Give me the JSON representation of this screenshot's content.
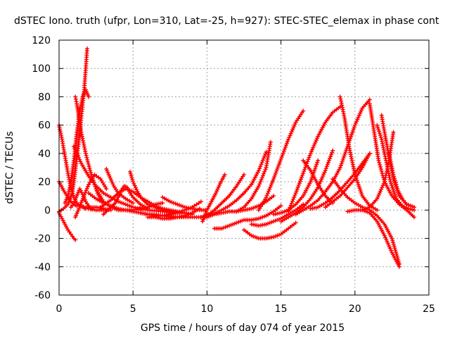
{
  "chart_data": {
    "type": "scatter",
    "title": "dSTEC Iono. truth (ufpr, Lon=310, Lat=-25, h=927): STEC-STEC_elemax in phase cont",
    "xlabel": "GPS time / hours of day 074 of year 2015",
    "ylabel": "dSTEC  / TECUs",
    "xlim": [
      0,
      25
    ],
    "ylim": [
      -60,
      120
    ],
    "xticks": [
      0,
      5,
      10,
      15,
      20,
      25
    ],
    "yticks": [
      -60,
      -40,
      -20,
      0,
      20,
      40,
      60,
      80,
      100,
      120
    ],
    "grid": true,
    "marker": "plus",
    "series_color": "#ff0000",
    "series": [
      {
        "x": [
          0.0,
          0.2,
          0.4,
          0.6,
          0.8,
          1.0,
          1.1
        ],
        "y": [
          -2,
          -6,
          -10,
          -14,
          -17,
          -20,
          -21
        ]
      },
      {
        "x": [
          0.0,
          0.2,
          0.4,
          0.6,
          0.8,
          1.0,
          1.2,
          1.4,
          1.6,
          1.8,
          2.0,
          2.5,
          3.0
        ],
        "y": [
          60,
          50,
          38,
          26,
          16,
          9,
          5,
          3,
          2,
          1,
          1,
          0,
          0
        ]
      },
      {
        "x": [
          0.0,
          0.3,
          0.6,
          0.9,
          1.1,
          1.3,
          1.5,
          1.7,
          1.9
        ],
        "y": [
          -1,
          1,
          4,
          12,
          28,
          45,
          65,
          85,
          114
        ]
      },
      {
        "x": [
          0.0,
          0.3,
          0.6,
          0.8,
          1.0,
          1.2,
          1.5,
          1.8,
          2.1,
          2.5,
          3.0,
          3.5
        ],
        "y": [
          20,
          14,
          9,
          6,
          4,
          3,
          3,
          2,
          2,
          2,
          1,
          0
        ]
      },
      {
        "x": [
          0.4,
          0.6,
          0.8,
          1.0,
          1.2,
          1.4,
          1.6,
          1.8,
          2.0
        ],
        "y": [
          5,
          10,
          20,
          35,
          55,
          70,
          80,
          85,
          80
        ]
      },
      {
        "x": [
          1.1,
          1.2,
          1.5,
          1.8,
          2.1,
          2.4,
          2.6,
          2.8
        ],
        "y": [
          80,
          75,
          55,
          40,
          28,
          18,
          12,
          8
        ]
      },
      {
        "x": [
          1.0,
          1.5,
          2.0,
          2.5,
          3.0,
          3.5,
          4.0,
          4.5,
          5.0,
          6.0,
          7.0,
          8.0
        ],
        "y": [
          45,
          33,
          24,
          17,
          12,
          9,
          6,
          4,
          2,
          0,
          -1,
          -2
        ]
      },
      {
        "x": [
          0.8,
          1.0,
          1.2,
          1.4,
          1.6,
          1.8,
          2.0,
          2.2
        ],
        "y": [
          2,
          5,
          10,
          15,
          11,
          6,
          3,
          1
        ]
      },
      {
        "x": [
          1.1,
          1.3,
          1.6,
          2.0,
          2.4,
          2.8,
          3.2
        ],
        "y": [
          -5,
          0,
          8,
          18,
          25,
          22,
          15
        ]
      },
      {
        "x": [
          2.0,
          2.5,
          3.0,
          3.5,
          4.0,
          4.5,
          5.0,
          5.5,
          6.0,
          7.0,
          8.0,
          9.0,
          10.0
        ],
        "y": [
          12,
          8,
          5,
          3,
          1,
          0,
          -1,
          -2,
          -3,
          -4,
          -5,
          -5,
          -5
        ]
      },
      {
        "x": [
          3.2,
          3.4,
          3.7,
          4.0,
          4.5,
          5.0
        ],
        "y": [
          29,
          24,
          17,
          12,
          8,
          5
        ]
      },
      {
        "x": [
          2.5,
          3.0,
          3.5,
          4.0,
          4.5,
          5.0,
          5.5,
          6.0,
          6.5,
          7.0
        ],
        "y": [
          15,
          6,
          2,
          0,
          0,
          0,
          1,
          2,
          4,
          5
        ]
      },
      {
        "x": [
          3.0,
          3.2,
          3.4,
          3.6,
          3.8,
          4.0,
          4.2,
          4.4,
          4.6,
          4.8,
          5.0,
          5.5,
          6.0
        ],
        "y": [
          -3,
          -1,
          1,
          3,
          5,
          9,
          14,
          17,
          16,
          12,
          9,
          4,
          1
        ]
      },
      {
        "x": [
          4.8,
          5.0,
          5.3,
          5.6,
          6.0,
          6.5,
          7.0,
          7.5,
          8.0,
          8.5,
          9.0
        ],
        "y": [
          27,
          20,
          13,
          8,
          4,
          2,
          0,
          -1,
          -2,
          -2,
          -3
        ]
      },
      {
        "x": [
          2.8,
          3.5,
          4.0,
          4.5,
          5.0,
          5.5,
          6.0,
          6.5,
          7.0,
          7.5,
          8.0,
          8.5,
          9.0
        ],
        "y": [
          2,
          7,
          12,
          15,
          13,
          9,
          6,
          3,
          1,
          0,
          -1,
          -2,
          -3
        ]
      },
      {
        "x": [
          7.0,
          7.5,
          8.0,
          8.5,
          9.0,
          9.5,
          10.0
        ],
        "y": [
          9,
          6,
          4,
          2,
          1,
          0,
          0
        ]
      },
      {
        "x": [
          5.5,
          6.0,
          6.5,
          7.0,
          7.5,
          8.0,
          8.5,
          9.0,
          9.3,
          9.6
        ],
        "y": [
          -2,
          -3,
          -4,
          -4,
          -3,
          -2,
          0,
          2,
          4,
          6
        ]
      },
      {
        "x": [
          6.0,
          6.5,
          7.0,
          7.5,
          8.0,
          8.5,
          9.0,
          9.5
        ],
        "y": [
          -5,
          -5,
          -6,
          -6,
          -5,
          -4,
          -2,
          1
        ]
      },
      {
        "x": [
          9.6,
          10.0,
          10.5,
          11.0,
          11.5,
          12.0,
          12.5,
          13.0,
          13.5,
          14.0,
          14.5
        ],
        "y": [
          -5,
          -5,
          -3,
          -2,
          -1,
          -1,
          0,
          1,
          3,
          6,
          10
        ]
      },
      {
        "x": [
          9.8,
          10.2,
          10.6,
          11.0,
          11.5,
          12.0,
          12.5,
          13.0,
          13.5,
          14.0
        ],
        "y": [
          -4,
          -3,
          -2,
          0,
          3,
          7,
          12,
          18,
          28,
          41
        ]
      },
      {
        "x": [
          9.7,
          10.0,
          10.3,
          10.6,
          10.9,
          11.2
        ],
        "y": [
          -8,
          0,
          6,
          12,
          19,
          25
        ]
      },
      {
        "x": [
          10.5,
          11.0,
          11.5,
          12.0,
          12.5,
          13.0,
          13.5,
          14.0,
          14.5,
          15.0
        ],
        "y": [
          -13,
          -13,
          -11,
          -9,
          -7,
          -7,
          -6,
          -4,
          -1,
          3
        ]
      },
      {
        "x": [
          10.0,
          10.5,
          11.0,
          11.5,
          12.0,
          12.5
        ],
        "y": [
          -4,
          0,
          5,
          10,
          17,
          25
        ]
      },
      {
        "x": [
          12.0,
          12.5,
          13.0,
          13.5,
          14.0,
          14.3
        ],
        "y": [
          -1,
          2,
          8,
          17,
          30,
          48
        ]
      },
      {
        "x": [
          12.5,
          13.0,
          13.5,
          14.0,
          14.5,
          15.0,
          15.5,
          16.0
        ],
        "y": [
          -14,
          -18,
          -20,
          -20,
          -19,
          -17,
          -13,
          -9
        ]
      },
      {
        "x": [
          13.0,
          13.5,
          14.0,
          14.5,
          15.0,
          15.5,
          16.0,
          16.5
        ],
        "y": [
          -10,
          -11,
          -10,
          -8,
          -6,
          -3,
          0,
          4
        ]
      },
      {
        "x": [
          13.5,
          14.0,
          14.5,
          15.0,
          15.5,
          16.0,
          16.5
        ],
        "y": [
          0,
          9,
          22,
          36,
          50,
          62,
          70
        ]
      },
      {
        "x": [
          14.5,
          15.0,
          15.5,
          16.0,
          16.5,
          17.0,
          17.5
        ],
        "y": [
          -3,
          -2,
          0,
          4,
          10,
          20,
          35
        ]
      },
      {
        "x": [
          15.0,
          15.5,
          16.0,
          16.5,
          17.0,
          17.5,
          18.0,
          18.5
        ],
        "y": [
          -8,
          -5,
          -2,
          2,
          8,
          16,
          28,
          42
        ]
      },
      {
        "x": [
          15.5,
          16.0,
          16.5,
          17.0,
          17.5,
          18.0,
          18.5,
          19.0
        ],
        "y": [
          -1,
          12,
          26,
          40,
          52,
          62,
          69,
          73
        ]
      },
      {
        "x": [
          16.0,
          16.5,
          17.0,
          17.5,
          18.0,
          18.5,
          19.0,
          19.5,
          20.0,
          20.5,
          21.0
        ],
        "y": [
          -3,
          0,
          3,
          7,
          13,
          20,
          30,
          45,
          60,
          72,
          78
        ]
      },
      {
        "x": [
          16.5,
          17.0,
          17.5,
          18.0,
          18.5
        ],
        "y": [
          35,
          28,
          18,
          10,
          5
        ]
      },
      {
        "x": [
          17.0,
          17.5,
          18.0,
          18.5,
          19.0,
          19.5,
          20.0,
          20.5,
          21.0
        ],
        "y": [
          1,
          2,
          5,
          9,
          14,
          20,
          26,
          33,
          40
        ]
      },
      {
        "x": [
          18.0,
          18.5,
          19.0,
          19.5,
          20.0,
          20.5,
          21.0
        ],
        "y": [
          2,
          6,
          10,
          16,
          22,
          30,
          40
        ]
      },
      {
        "x": [
          18.5,
          19.0,
          19.5,
          20.0,
          20.5,
          21.0,
          21.5,
          22.0,
          22.5,
          23.0
        ],
        "y": [
          22,
          15,
          9,
          5,
          2,
          0,
          -4,
          -10,
          -20,
          -38
        ]
      },
      {
        "x": [
          19.0,
          19.3,
          19.6,
          20.0,
          20.5,
          21.0,
          21.5
        ],
        "y": [
          80,
          65,
          45,
          25,
          10,
          3,
          0
        ]
      },
      {
        "x": [
          19.5,
          20.0,
          20.5,
          21.0,
          21.5,
          22.0,
          22.5,
          23.0
        ],
        "y": [
          -1,
          0,
          0,
          -2,
          -8,
          -18,
          -30,
          -40
        ]
      },
      {
        "x": [
          21.0,
          21.3,
          21.6,
          22.0,
          22.5,
          23.0,
          23.5,
          24.0
        ],
        "y": [
          75,
          55,
          35,
          20,
          10,
          4,
          0,
          -5
        ]
      },
      {
        "x": [
          21.5,
          21.8,
          22.1,
          22.4,
          22.8,
          23.2,
          23.6,
          24.0
        ],
        "y": [
          60,
          50,
          35,
          20,
          8,
          3,
          1,
          0
        ]
      },
      {
        "x": [
          21.8,
          22.0,
          22.3,
          22.6,
          23.0,
          23.5,
          24.0
        ],
        "y": [
          67,
          55,
          38,
          22,
          10,
          4,
          2
        ]
      },
      {
        "x": [
          20.5,
          21.0,
          21.5,
          22.0,
          22.3,
          22.6
        ],
        "y": [
          0,
          2,
          8,
          20,
          35,
          55
        ]
      },
      {
        "x": [
          22.3,
          22.6,
          22.9,
          23.2,
          23.5,
          24.0
        ],
        "y": [
          40,
          25,
          14,
          8,
          4,
          2
        ]
      }
    ]
  }
}
